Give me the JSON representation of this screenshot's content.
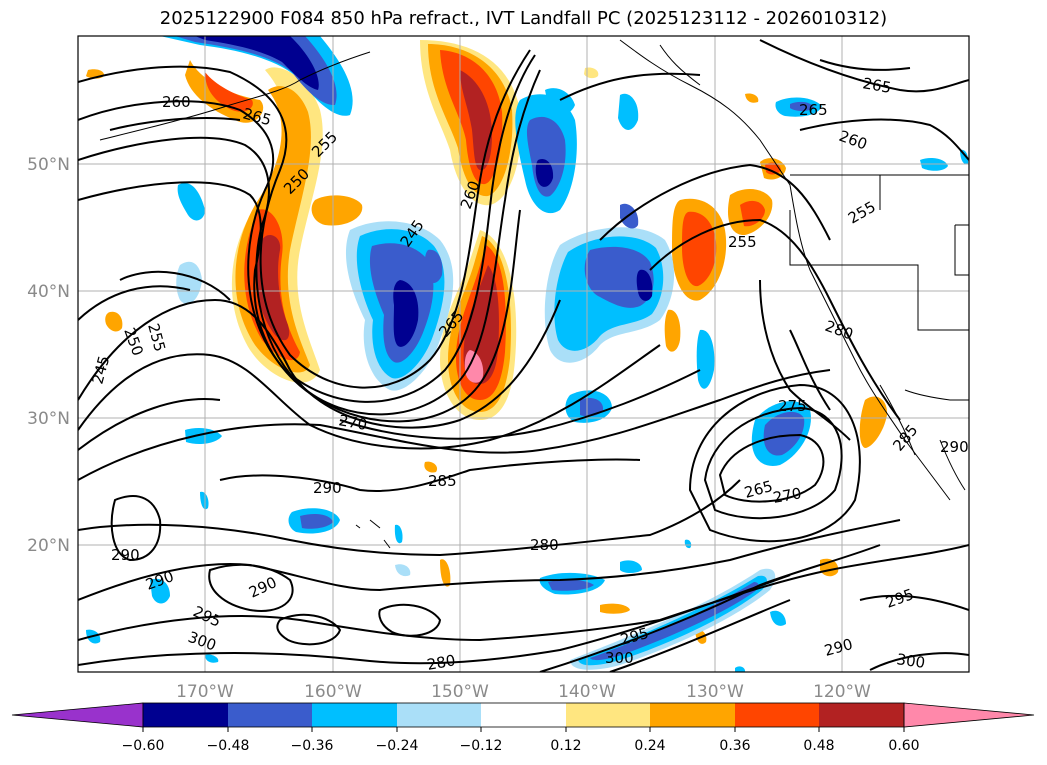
{
  "title": "2025122900 F084 850 hPa refract., IVT Landfall PC (2025123112 - 2026010312)",
  "map": {
    "lat_labels": [
      "50°N",
      "40°N",
      "30°N",
      "20°N"
    ],
    "lon_labels": [
      "170°W",
      "160°W",
      "150°W",
      "140°W",
      "130°W",
      "120°W"
    ],
    "contour_labels": [
      "260",
      "265",
      "255",
      "250",
      "260",
      "245",
      "265",
      "255",
      "250",
      "245",
      "270",
      "285",
      "290",
      "280",
      "290",
      "290",
      "295",
      "300",
      "290",
      "280",
      "300",
      "295",
      "275",
      "265",
      "270",
      "280",
      "255",
      "255",
      "260",
      "265",
      "265",
      "285",
      "290",
      "295",
      "300",
      "290"
    ]
  },
  "colorbar": {
    "ticks": [
      "−0.60",
      "−0.48",
      "−0.36",
      "−0.24",
      "−0.12",
      "0.12",
      "0.24",
      "0.36",
      "0.48",
      "0.60"
    ],
    "colors": [
      "#9932cc",
      "#000090",
      "#3a5ccc",
      "#00bfff",
      "#aadff8",
      "#ffffff",
      "#ffe680",
      "#ffa500",
      "#ff4500",
      "#b22222",
      "#ff88aa"
    ]
  }
}
